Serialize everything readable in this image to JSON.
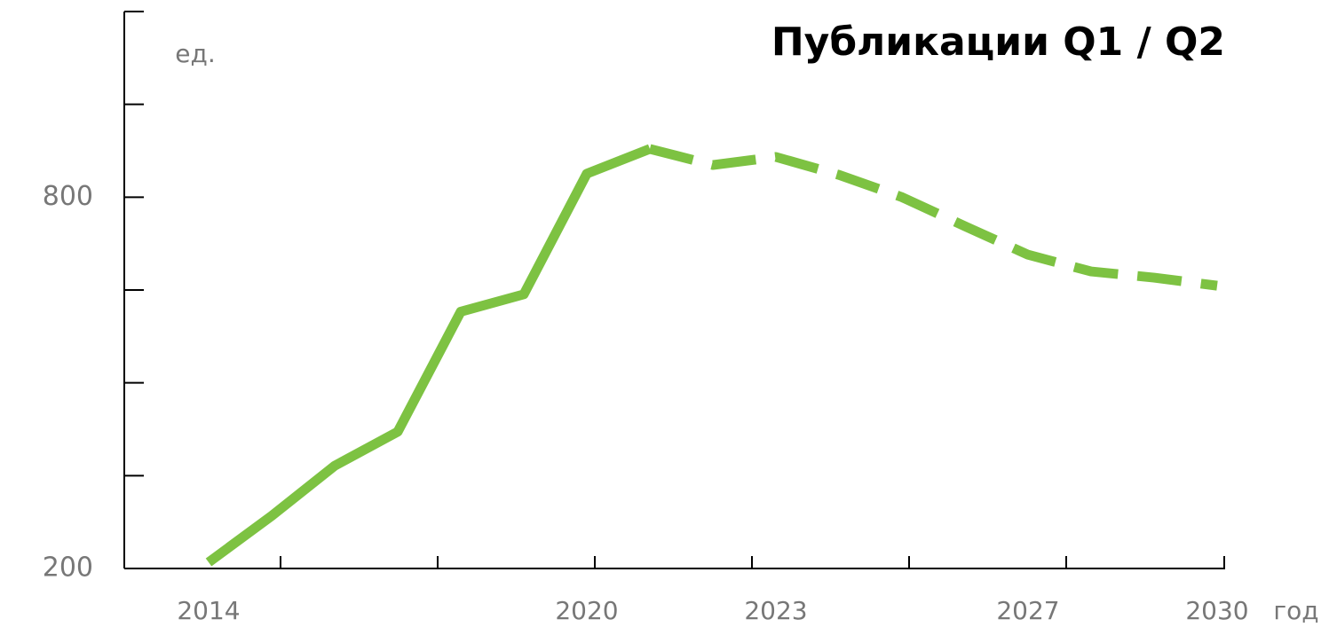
{
  "chart_data": {
    "type": "line",
    "title": "Публикации Q1 / Q2",
    "y_unit_label": "ед.",
    "x_unit_label": "год",
    "categories": [
      "2014",
      null,
      null,
      null,
      null,
      null,
      "2020",
      null,
      null,
      "2023",
      null,
      null,
      null,
      "2027",
      null,
      null,
      "2030"
    ],
    "series": [
      {
        "color": "#7dc242",
        "dashed": false,
        "values": [
          210,
          285,
          366,
          421,
          615,
          643,
          838,
          878,
          null,
          null,
          null,
          null,
          null,
          null,
          null,
          null,
          null
        ]
      },
      {
        "color": "#7dc242",
        "dashed": true,
        "values": [
          null,
          null,
          null,
          null,
          null,
          null,
          null,
          878,
          852,
          865,
          836,
          800,
          753,
          707,
          680,
          670,
          657
        ]
      }
    ],
    "ylim": [
      200,
      1100
    ],
    "yticks": [
      200,
      800
    ],
    "minor_yticks": [
      350,
      500,
      650,
      950,
      1100
    ],
    "grid": false
  }
}
